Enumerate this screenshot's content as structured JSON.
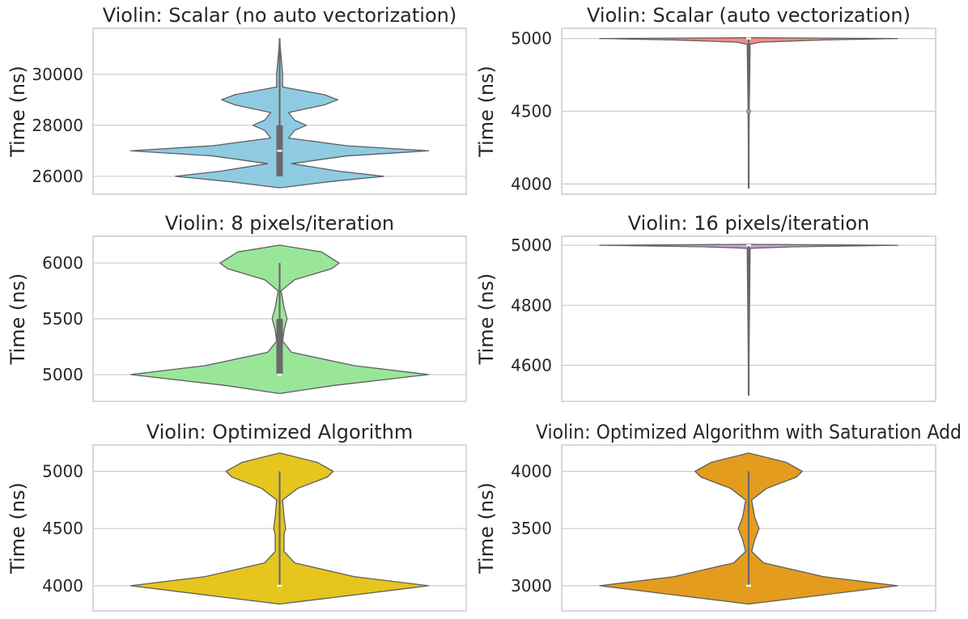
{
  "chart_data": [
    {
      "type": "violin",
      "title": "Violin: Scalar (no auto vectorization)",
      "ylabel": "Time (ns)",
      "ylim": [
        25300,
        31800
      ],
      "yticks": [
        26000,
        28000,
        30000
      ],
      "ytick_labels": [
        "26000",
        "28000",
        "30000"
      ],
      "fill": "#8ecbe2",
      "density": [
        [
          25550,
          0
        ],
        [
          25800,
          0.35
        ],
        [
          26000,
          0.7
        ],
        [
          26200,
          0.4
        ],
        [
          26500,
          0.08
        ],
        [
          26800,
          0.45
        ],
        [
          27000,
          1.0
        ],
        [
          27200,
          0.45
        ],
        [
          27500,
          0.06
        ],
        [
          27800,
          0.1
        ],
        [
          28000,
          0.18
        ],
        [
          28200,
          0.1
        ],
        [
          28500,
          0.06
        ],
        [
          28800,
          0.3
        ],
        [
          29000,
          0.39
        ],
        [
          29200,
          0.3
        ],
        [
          29500,
          0.02
        ],
        [
          30000,
          0.02
        ],
        [
          31000,
          0.005
        ],
        [
          31400,
          0
        ]
      ],
      "quartiles": [
        26000,
        27000,
        28000
      ],
      "whiskers": [
        26000,
        31400
      ],
      "median": 27000
    },
    {
      "type": "violin",
      "title": "Violin: Scalar (auto vectorization)",
      "ylabel": "Time (ns)",
      "ylim": [
        3930,
        5070
      ],
      "yticks": [
        4000,
        4500,
        5000
      ],
      "ytick_labels": [
        "4000",
        "4500",
        "5000"
      ],
      "fill": "#f48c85",
      "density": [
        [
          3970,
          0
        ],
        [
          4500,
          0.004
        ],
        [
          4960,
          0.01
        ],
        [
          4975,
          0.08
        ],
        [
          4990,
          0.5
        ],
        [
          5000,
          1.0
        ],
        [
          5005,
          0
        ]
      ],
      "quartiles": [
        5000,
        5000,
        5000
      ],
      "whiskers": [
        3970,
        5000
      ],
      "median": 5000,
      "outliers": [
        4500
      ]
    },
    {
      "type": "violin",
      "title": "Violin: 8 pixels/iteration",
      "ylabel": "Time (ns)",
      "ylim": [
        4760,
        6240
      ],
      "yticks": [
        5000,
        5500,
        6000
      ],
      "ytick_labels": [
        "5000",
        "5500",
        "6000"
      ],
      "fill": "#99e699",
      "density": [
        [
          4830,
          0
        ],
        [
          4900,
          0.35
        ],
        [
          5000,
          1.0
        ],
        [
          5080,
          0.5
        ],
        [
          5200,
          0.08
        ],
        [
          5300,
          0.02
        ],
        [
          5400,
          0.03
        ],
        [
          5500,
          0.05
        ],
        [
          5600,
          0.03
        ],
        [
          5750,
          0.01
        ],
        [
          5850,
          0.1
        ],
        [
          5950,
          0.35
        ],
        [
          6000,
          0.4
        ],
        [
          6100,
          0.28
        ],
        [
          6160,
          0
        ]
      ],
      "quartiles": [
        5000,
        5000,
        5500
      ],
      "whiskers": [
        5000,
        6000
      ],
      "median": 5000
    },
    {
      "type": "violin",
      "title": "Violin: 16 pixels/iteration",
      "ylabel": "Time (ns)",
      "ylim": [
        4480,
        5030
      ],
      "yticks": [
        4600,
        4800,
        5000
      ],
      "ytick_labels": [
        "4600",
        "4800",
        "5000"
      ],
      "fill": "#c5a3e0",
      "density": [
        [
          4500,
          0
        ],
        [
          4990,
          0.01
        ],
        [
          4995,
          0.3
        ],
        [
          5000,
          1.0
        ],
        [
          5003,
          0
        ]
      ],
      "quartiles": [
        5000,
        5000,
        5000
      ],
      "whiskers": [
        4500,
        5000
      ],
      "median": 5000
    },
    {
      "type": "violin",
      "title": "Violin: Optimized Algorithm",
      "ylabel": "Time (ns)",
      "ylim": [
        3780,
        5230
      ],
      "yticks": [
        4000,
        4500,
        5000
      ],
      "ytick_labels": [
        "4000",
        "4500",
        "5000"
      ],
      "fill": "#e6c51e",
      "density": [
        [
          3840,
          0
        ],
        [
          3900,
          0.38
        ],
        [
          4000,
          1.0
        ],
        [
          4080,
          0.5
        ],
        [
          4200,
          0.1
        ],
        [
          4300,
          0.03
        ],
        [
          4450,
          0.03
        ],
        [
          4500,
          0.04
        ],
        [
          4600,
          0.03
        ],
        [
          4750,
          0.02
        ],
        [
          4850,
          0.12
        ],
        [
          4950,
          0.32
        ],
        [
          5000,
          0.36
        ],
        [
          5080,
          0.25
        ],
        [
          5160,
          0
        ]
      ],
      "quartiles": [
        4000,
        4000,
        4000
      ],
      "whiskers": [
        4000,
        5000
      ],
      "median": 4000
    },
    {
      "type": "violin",
      "title": "Violin: Optimized Algorithm with Saturation Add",
      "ylabel": "Time (ns)",
      "ylim": [
        2780,
        4230
      ],
      "yticks": [
        3000,
        3500,
        4000
      ],
      "ytick_labels": [
        "3000",
        "3500",
        "4000"
      ],
      "fill": "#e39c1e",
      "density": [
        [
          2840,
          0
        ],
        [
          2900,
          0.38
        ],
        [
          3000,
          1.0
        ],
        [
          3080,
          0.5
        ],
        [
          3200,
          0.1
        ],
        [
          3300,
          0.02
        ],
        [
          3400,
          0.04
        ],
        [
          3500,
          0.07
        ],
        [
          3600,
          0.04
        ],
        [
          3750,
          0.02
        ],
        [
          3850,
          0.12
        ],
        [
          3950,
          0.32
        ],
        [
          4000,
          0.36
        ],
        [
          4080,
          0.25
        ],
        [
          4160,
          0
        ]
      ],
      "quartiles": [
        3000,
        3000,
        3000
      ],
      "whiskers": [
        3000,
        4000
      ],
      "median": 3000
    }
  ]
}
